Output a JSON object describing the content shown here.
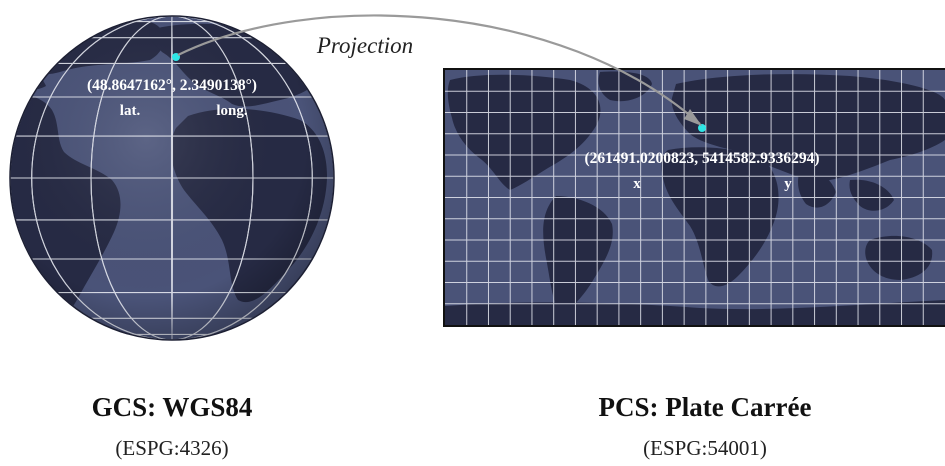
{
  "colors": {
    "ocean": "#4a5378",
    "land": "#262a44",
    "grid": "#e6e8f0",
    "marker": "#2ee6e6",
    "arrow": "#9a9a9a",
    "frame": "#111111"
  },
  "arrow_label": "Projection",
  "gcs": {
    "coord_text": "(48.8647162°, 2.3490138°)",
    "first_label": "lat.",
    "second_label": "long.",
    "title": "GCS: WGS84",
    "subtitle": "(ESPG:4326)"
  },
  "pcs": {
    "coord_text": "(261491.0200823, 5414582.9336294)",
    "first_label": "x",
    "second_label": "y",
    "title": "PCS: Plate Carrée",
    "subtitle": "(ESPG:54001)"
  }
}
